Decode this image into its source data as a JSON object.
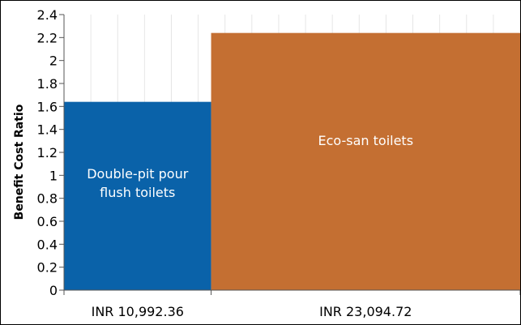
{
  "chart_data": {
    "type": "bar",
    "variable_width": true,
    "title": "",
    "xlabel": "",
    "ylabel": "Benefit Cost Ratio",
    "ylim": [
      0,
      2.4
    ],
    "yticks": [
      "0",
      "0.2",
      "0.4",
      "0.6",
      "0.8",
      "1",
      "1.2",
      "1.4",
      "1.6",
      "1.8",
      "2",
      "2.2",
      "2.4"
    ],
    "grid": true,
    "categories": [
      "INR 10,992.36",
      "INR 23,094.72"
    ],
    "bar_labels": [
      [
        "Double-pit pour",
        "flush toilets"
      ],
      [
        "Eco-san toilets"
      ]
    ],
    "values": [
      1.64,
      2.24
    ],
    "widths": [
      10992.36,
      23094.72
    ],
    "colors": [
      "#0a62a9",
      "#c46f32"
    ]
  }
}
